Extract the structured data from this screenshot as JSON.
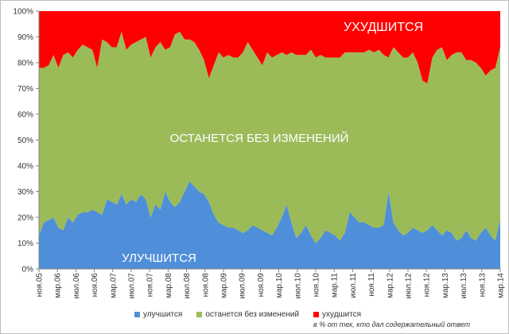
{
  "chart_data": {
    "type": "area",
    "stacked": true,
    "y_axis": {
      "min": 0,
      "max": 100,
      "step": 10,
      "format": "percent",
      "tick_labels": [
        "0%",
        "10%",
        "20%",
        "30%",
        "40%",
        "50%",
        "60%",
        "70%",
        "80%",
        "90%",
        "100%"
      ]
    },
    "grid": false,
    "legend_position": "bottom",
    "x_tick_labels": [
      "ноя.05",
      "мар.06",
      "июл.06",
      "ноя.06",
      "мар.07",
      "июл.07",
      "ноя.07",
      "мар.08",
      "июл.08",
      "ноя.08",
      "мар.09",
      "июл.09",
      "ноя.09",
      "мар.10",
      "июл.10",
      "ноя.10",
      "мар.11",
      "июл.11",
      "ноя.11",
      "мар.12",
      "июл.12",
      "ноя.12",
      "мар.13",
      "июл.13",
      "ноя.13",
      "мар.14"
    ],
    "annotations": {
      "top": "УХУДШИТСЯ",
      "middle": "ОСТАНЕТСЯ БЕЗ ИЗМЕНЕНИЙ",
      "bottom": "УЛУЧШИТСЯ"
    },
    "series": [
      {
        "name": "улучшится",
        "color": "#4f8fd9",
        "values": [
          13,
          18,
          19,
          20,
          16,
          15,
          20,
          18,
          21,
          22,
          22,
          23,
          22,
          21,
          27,
          26,
          25,
          29,
          25,
          27,
          26,
          29,
          27,
          20,
          25,
          23,
          30,
          26,
          24,
          26,
          30,
          34,
          32,
          30,
          29,
          26,
          21,
          18,
          17,
          16,
          16,
          15,
          14,
          15,
          17,
          16,
          15,
          14,
          13,
          16,
          20,
          25,
          18,
          12,
          14,
          17,
          13,
          10,
          12,
          15,
          14,
          13,
          11,
          14,
          22,
          20,
          18,
          18,
          17,
          16,
          16,
          17,
          30,
          18,
          15,
          13,
          14,
          16,
          15,
          14,
          15,
          17,
          15,
          13,
          15,
          14,
          11,
          12,
          15,
          12,
          11,
          14,
          16,
          13,
          11,
          19
        ]
      },
      {
        "name": "останется без изменений",
        "color": "#9bbb59",
        "values": [
          65,
          60,
          60,
          63,
          62,
          68,
          64,
          64,
          64,
          65,
          64,
          62,
          56,
          68,
          61,
          60,
          61,
          63,
          60,
          60,
          62,
          60,
          63,
          62,
          61,
          65,
          55,
          60,
          67,
          66,
          59,
          55,
          56,
          55,
          52,
          48,
          58,
          66,
          65,
          67,
          66,
          67,
          70,
          73,
          68,
          66,
          64,
          70,
          69,
          67,
          64,
          58,
          66,
          71,
          69,
          66,
          72,
          72,
          71,
          67,
          68,
          69,
          71,
          70,
          62,
          64,
          66,
          66,
          68,
          68,
          69,
          66,
          52,
          68,
          69,
          69,
          68,
          68,
          65,
          59,
          57,
          65,
          70,
          73,
          66,
          69,
          73,
          72,
          66,
          69,
          69,
          64,
          59,
          64,
          67,
          67
        ]
      },
      {
        "name": "ухудшится",
        "color": "#ff0000",
        "values": [
          22,
          22,
          21,
          17,
          22,
          17,
          16,
          18,
          15,
          13,
          14,
          15,
          22,
          11,
          12,
          14,
          14,
          8,
          15,
          13,
          12,
          11,
          10,
          18,
          14,
          12,
          15,
          14,
          9,
          8,
          11,
          11,
          12,
          15,
          19,
          26,
          21,
          16,
          18,
          17,
          18,
          18,
          16,
          12,
          15,
          18,
          21,
          16,
          18,
          17,
          16,
          17,
          16,
          17,
          17,
          17,
          15,
          18,
          17,
          18,
          18,
          18,
          18,
          16,
          16,
          16,
          16,
          16,
          15,
          16,
          15,
          17,
          18,
          14,
          16,
          18,
          18,
          16,
          20,
          27,
          28,
          18,
          15,
          14,
          19,
          17,
          16,
          16,
          19,
          19,
          20,
          22,
          25,
          23,
          22,
          14
        ]
      }
    ],
    "note": "в % от тех, кто дал содержательный ответ"
  }
}
